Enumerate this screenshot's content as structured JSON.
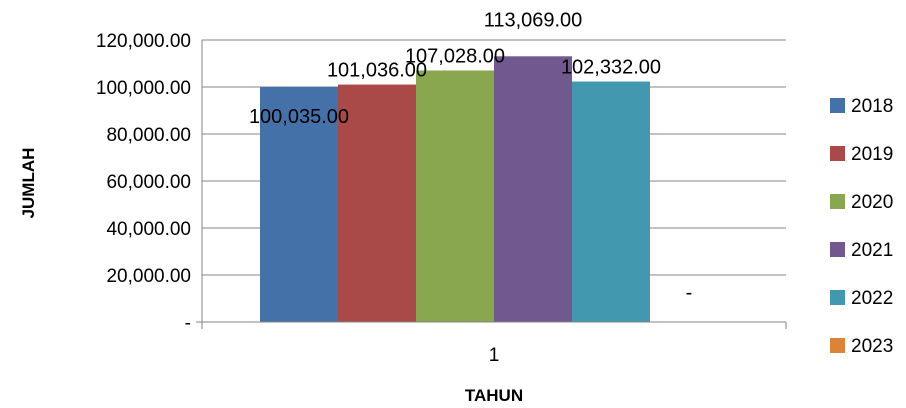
{
  "chart_data": {
    "type": "bar",
    "categories": [
      "1"
    ],
    "xlabel": "TAHUN",
    "ylabel": "JUMLAH",
    "ylim": [
      0,
      120000
    ],
    "ytick_step": 20000,
    "yticks": [
      "-",
      "20,000.00",
      "40,000.00",
      "60,000.00",
      "80,000.00",
      "100,000.00",
      "120,000.00"
    ],
    "grid": true,
    "legend_position": "right",
    "series": [
      {
        "name": "2018",
        "values": [
          100035
        ],
        "label": "100,035.00",
        "color": "#4472a8"
      },
      {
        "name": "2019",
        "values": [
          101036
        ],
        "label": "101,036.00",
        "color": "#a94a48"
      },
      {
        "name": "2020",
        "values": [
          107028
        ],
        "label": "107,028.00",
        "color": "#88a74f"
      },
      {
        "name": "2021",
        "values": [
          113069
        ],
        "label": "113,069.00",
        "color": "#71588f"
      },
      {
        "name": "2022",
        "values": [
          102332
        ],
        "label": "102,332.00",
        "color": "#4298ae"
      },
      {
        "name": "2023",
        "values": [
          0
        ],
        "label": "-",
        "color": "#db8438"
      }
    ]
  }
}
